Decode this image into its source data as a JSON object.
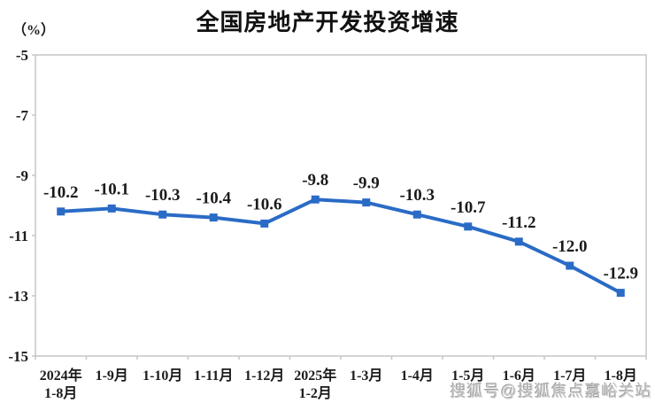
{
  "page": {
    "watermark": "搜狐号@搜狐焦点嘉峪关站"
  },
  "chart_data": {
    "type": "line",
    "title": "全国房地产开发投资增速",
    "ylabel": "（%）",
    "categories": [
      "2024年\n1-8月",
      "1-9月",
      "1-10月",
      "1-11月",
      "1-12月",
      "2025年\n1-2月",
      "1-3月",
      "1-4月",
      "1-5月",
      "1-6月",
      "1-7月",
      "1-8月"
    ],
    "values": [
      -10.2,
      -10.1,
      -10.3,
      -10.4,
      -10.6,
      -9.8,
      -9.9,
      -10.3,
      -10.7,
      -11.2,
      -12.0,
      -12.9
    ],
    "point_labels": [
      "-10.2",
      "-10.1",
      "-10.3",
      "-10.4",
      "-10.6",
      "-9.8",
      "-9.9",
      "-10.3",
      "-10.7",
      "-11.2",
      "-12.0",
      "-12.9"
    ],
    "ylim": [
      -15,
      -5
    ],
    "yticks": [
      -5,
      -7,
      -9,
      -11,
      -13,
      -15
    ],
    "grid": false,
    "legend": "none",
    "marker": "square",
    "line_color": "#2a6bc6",
    "label_color": "#1b1b1b",
    "axis_color": "#c6c6c6",
    "title_color": "#111111"
  }
}
